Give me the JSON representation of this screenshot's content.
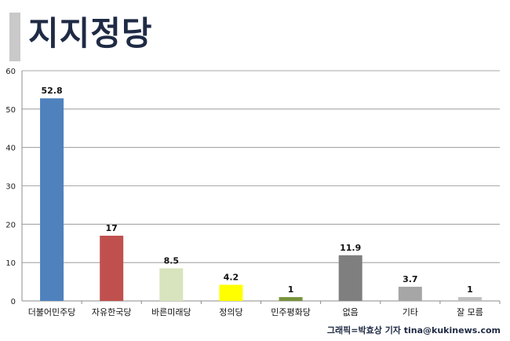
{
  "title": "지지정당",
  "credit": "그래픽=박효상 기자 tina@kukinews.com",
  "chart_data": {
    "type": "bar",
    "title": "",
    "xlabel": "",
    "ylabel": "",
    "ylim": [
      0,
      60
    ],
    "yticks": [
      0,
      10,
      20,
      30,
      40,
      50,
      60
    ],
    "grid": true,
    "categories": [
      "더불어민주당",
      "자유한국당",
      "바른미래당",
      "정의당",
      "민주평화당",
      "없음",
      "기타",
      "잘 모름"
    ],
    "values": [
      52.8,
      17,
      8.5,
      4.2,
      1,
      11.9,
      3.7,
      1
    ],
    "value_labels": [
      "52.8",
      "17",
      "8.5",
      "4.2",
      "1",
      "11.9",
      "3.7",
      "1"
    ],
    "colors": [
      "#4f81bd",
      "#c0504d",
      "#d7e4bd",
      "#ffff00",
      "#77933c",
      "#7f7f7f",
      "#a6a6a6",
      "#bfbfbf"
    ]
  }
}
